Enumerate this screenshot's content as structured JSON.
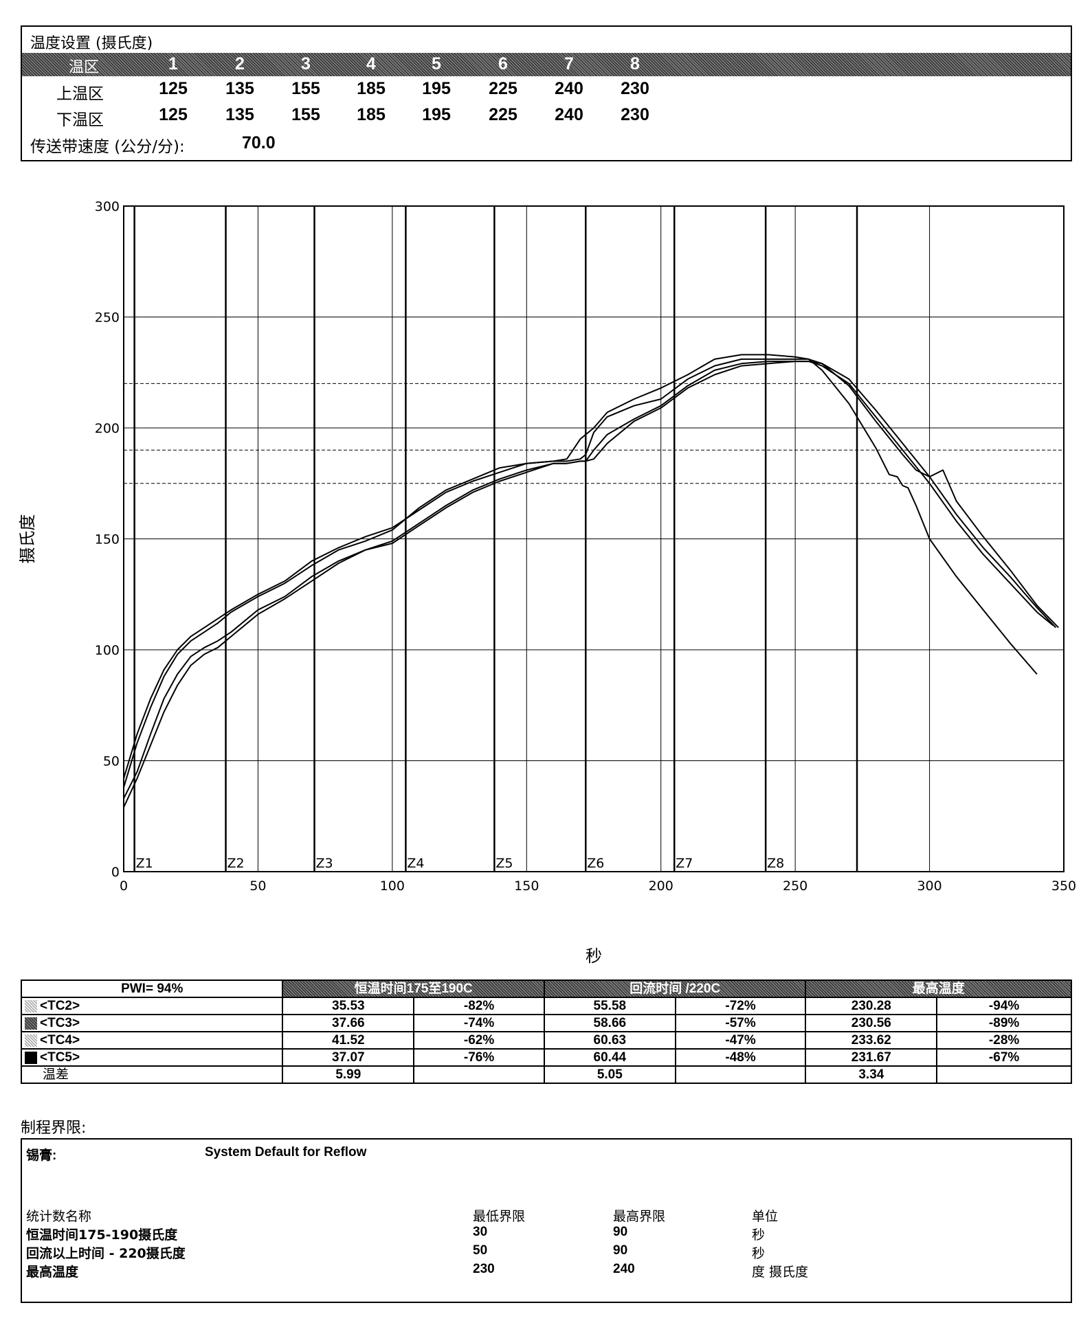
{
  "settings": {
    "title": "温度设置 (摄氏度)",
    "zone_header": "温区",
    "zones": [
      "1",
      "2",
      "3",
      "4",
      "5",
      "6",
      "7",
      "8"
    ],
    "upper_label": "上温区",
    "upper": [
      "125",
      "135",
      "155",
      "185",
      "195",
      "225",
      "240",
      "230"
    ],
    "lower_label": "下温区",
    "lower": [
      "125",
      "135",
      "155",
      "185",
      "195",
      "225",
      "240",
      "230"
    ],
    "conveyor_label": "传送带速度 (公分/分):",
    "conveyor_value": "70.0"
  },
  "chart_data": {
    "type": "line",
    "ylabel": "摄氏度",
    "xlabel": "秒",
    "xlim": [
      0,
      350
    ],
    "ylim": [
      0,
      300
    ],
    "x_ticks": [
      0,
      50,
      100,
      150,
      200,
      250,
      300,
      350
    ],
    "y_ticks": [
      0,
      50,
      100,
      150,
      200,
      250,
      300
    ],
    "grid": true,
    "reference_lines": [
      175,
      190,
      220
    ],
    "zone_markers": [
      {
        "label": "Z1",
        "x": 4
      },
      {
        "label": "Z2",
        "x": 38
      },
      {
        "label": "Z3",
        "x": 71
      },
      {
        "label": "Z4",
        "x": 105
      },
      {
        "label": "Z5",
        "x": 138
      },
      {
        "label": "Z6",
        "x": 172
      },
      {
        "label": "Z7",
        "x": 205
      },
      {
        "label": "Z8",
        "x": 239
      },
      {
        "label": "",
        "x": 273
      }
    ],
    "series": [
      {
        "name": "<TC2>",
        "x": [
          0,
          5,
          10,
          15,
          20,
          25,
          30,
          35,
          40,
          50,
          60,
          70,
          80,
          90,
          100,
          110,
          120,
          130,
          140,
          150,
          160,
          165,
          170,
          172,
          175,
          180,
          190,
          200,
          210,
          220,
          230,
          240,
          250,
          255,
          260,
          270,
          280,
          290,
          300,
          310,
          320,
          330,
          340,
          346
        ],
        "y": [
          33,
          45,
          62,
          78,
          89,
          97,
          101,
          104,
          108,
          118,
          124,
          133,
          140,
          145,
          149,
          157,
          165,
          172,
          177,
          181,
          184,
          184,
          185,
          185,
          186,
          193,
          203,
          209,
          218,
          224,
          228,
          229,
          230,
          230,
          228,
          220,
          205,
          190,
          175,
          158,
          143,
          130,
          117,
          111
        ]
      },
      {
        "name": "<TC3>",
        "x": [
          0,
          5,
          10,
          15,
          20,
          25,
          30,
          35,
          40,
          50,
          60,
          70,
          80,
          90,
          100,
          110,
          120,
          130,
          140,
          150,
          160,
          165,
          170,
          172,
          175,
          180,
          190,
          200,
          210,
          220,
          230,
          240,
          250,
          255,
          260,
          270,
          280,
          290,
          300,
          310,
          320,
          330,
          340,
          347
        ],
        "y": [
          29,
          42,
          57,
          72,
          84,
          93,
          98,
          101,
          106,
          116,
          123,
          131,
          139,
          145,
          148,
          156,
          164,
          171,
          176,
          180,
          184,
          184,
          185,
          185,
          190,
          197,
          204,
          210,
          219,
          226,
          229,
          230,
          230,
          230,
          229,
          222,
          208,
          193,
          178,
          161,
          146,
          133,
          119,
          110
        ]
      },
      {
        "name": "<TC4>",
        "x": [
          0,
          5,
          10,
          15,
          20,
          25,
          30,
          35,
          40,
          50,
          60,
          70,
          80,
          90,
          100,
          104,
          110,
          120,
          130,
          140,
          150,
          160,
          165,
          170,
          175,
          180,
          190,
          200,
          210,
          220,
          230,
          240,
          250,
          255,
          260,
          270,
          280,
          285,
          288,
          290,
          292,
          295,
          300,
          310,
          320,
          330,
          340
        ],
        "y": [
          38,
          58,
          74,
          88,
          98,
          104,
          108,
          112,
          117,
          124,
          130,
          138,
          145,
          149,
          154,
          158,
          164,
          172,
          177,
          182,
          184,
          185,
          186,
          195,
          200,
          207,
          213,
          218,
          224,
          231,
          233,
          233,
          232,
          231,
          226,
          211,
          191,
          179,
          178,
          174,
          173,
          165,
          150,
          133,
          118,
          103,
          89
        ]
      },
      {
        "name": "<TC5>",
        "x": [
          0,
          5,
          10,
          15,
          20,
          25,
          30,
          35,
          40,
          50,
          60,
          70,
          80,
          90,
          100,
          110,
          120,
          130,
          140,
          150,
          160,
          165,
          170,
          172,
          175,
          180,
          190,
          200,
          210,
          220,
          230,
          240,
          250,
          255,
          260,
          270,
          280,
          290,
          295,
          300,
          305,
          310,
          320,
          330,
          340,
          348
        ],
        "y": [
          42,
          62,
          78,
          91,
          100,
          106,
          110,
          114,
          118,
          125,
          131,
          140,
          146,
          151,
          155,
          163,
          171,
          176,
          180,
          184,
          185,
          185,
          186,
          188,
          198,
          205,
          210,
          213,
          222,
          228,
          231,
          231,
          231,
          231,
          229,
          219,
          203,
          188,
          181,
          178,
          181,
          167,
          151,
          136,
          120,
          110
        ]
      }
    ]
  },
  "stats": {
    "pwi": "PWI= 94%",
    "headers": [
      "恒温时间175至190C",
      "回流时间 /220C",
      "最高温度"
    ],
    "rows": [
      {
        "label": "<TC2>",
        "values": [
          "35.53",
          "-82%",
          "55.58",
          "-72%",
          "230.28",
          "-94%"
        ]
      },
      {
        "label": "<TC3>",
        "values": [
          "37.66",
          "-74%",
          "58.66",
          "-57%",
          "230.56",
          "-89%"
        ]
      },
      {
        "label": "<TC4>",
        "values": [
          "41.52",
          "-62%",
          "60.63",
          "-47%",
          "233.62",
          "-28%"
        ]
      },
      {
        "label": "<TC5>",
        "values": [
          "37.07",
          "-76%",
          "60.44",
          "-48%",
          "231.67",
          "-67%"
        ]
      }
    ],
    "diff_label": "温差",
    "diff_values": [
      "5.99",
      "",
      "5.05",
      "",
      "3.34",
      ""
    ]
  },
  "limits": {
    "title": "制程界限:",
    "paste_label": "锡膏:",
    "paste_value": "System Default for Reflow",
    "headers": [
      "统计数名称",
      "最低界限",
      "最高界限",
      "单位"
    ],
    "rows": [
      [
        "恒温时间175-190摄氏度",
        "30",
        "90",
        "秒"
      ],
      [
        "回流以上时间 - 220摄氏度",
        "50",
        "90",
        "秒"
      ],
      [
        "最高温度",
        "230",
        "240",
        "度 摄氏度"
      ]
    ]
  }
}
